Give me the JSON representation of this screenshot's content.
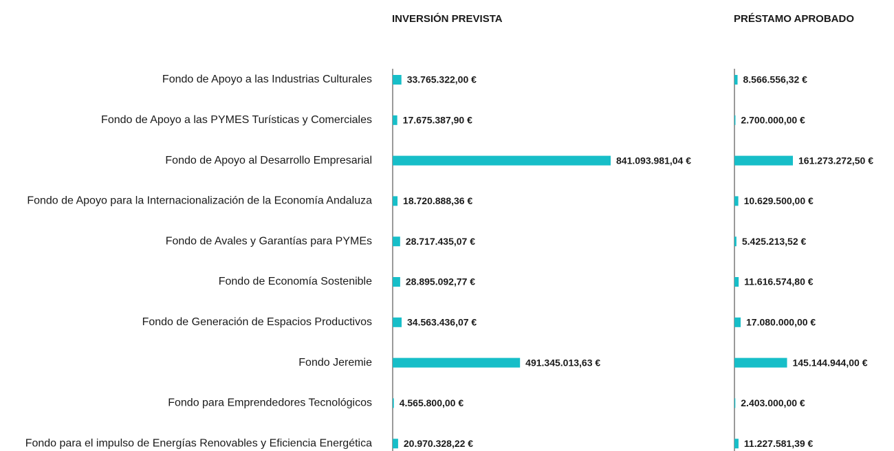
{
  "chart_data": {
    "type": "bar",
    "orientation": "horizontal",
    "categories": [
      "Fondo de Apoyo a las Industrias Culturales",
      "Fondo de Apoyo a las PYMES Turísticas y Comerciales",
      "Fondo de Apoyo al Desarrollo Empresarial",
      "Fondo de Apoyo para la Internacionalización de la Economía Andaluza",
      "Fondo de Avales y Garantías para PYMEs",
      "Fondo de Economía Sostenible",
      "Fondo de Generación de Espacios Productivos",
      "Fondo Jeremie",
      "Fondo para Emprendedores Tecnológicos",
      "Fondo para el impulso de Energías Renovables y Eficiencia Energética"
    ],
    "series": [
      {
        "name": "INVERSIÓN PREVISTA",
        "color": "#17bec8",
        "values": [
          33765322.0,
          17675387.9,
          841093981.04,
          18720888.36,
          28717435.07,
          28895092.77,
          34563436.07,
          491345013.63,
          4565800.0,
          20970328.22
        ],
        "value_labels": [
          "33.765.322,00 €",
          "17.675.387,90 €",
          "841.093.981,04 €",
          "18.720.888,36 €",
          "28.717.435,07 €",
          "28.895.092,77 €",
          "34.563.436,07 €",
          "491.345.013,63 €",
          "4.565.800,00 €",
          "20.970.328,22 €"
        ]
      },
      {
        "name": "PRÉSTAMO APROBADO",
        "color": "#17bec8",
        "values": [
          8566556.32,
          2700000.0,
          161273272.5,
          10629500.0,
          5425213.52,
          11616574.8,
          17080000.0,
          145144944.0,
          2403000.0,
          11227581.39
        ],
        "value_labels": [
          "8.566.556,32 €",
          "2.700.000,00 €",
          "161.273.272,50 €",
          "10.629.500,00 €",
          "5.425.213,52 €",
          "11.616.574,80 €",
          "17.080.000,00 €",
          "145.144.944,00 €",
          "2.403.000,00 €",
          "11.227.581,39 €"
        ]
      }
    ]
  }
}
